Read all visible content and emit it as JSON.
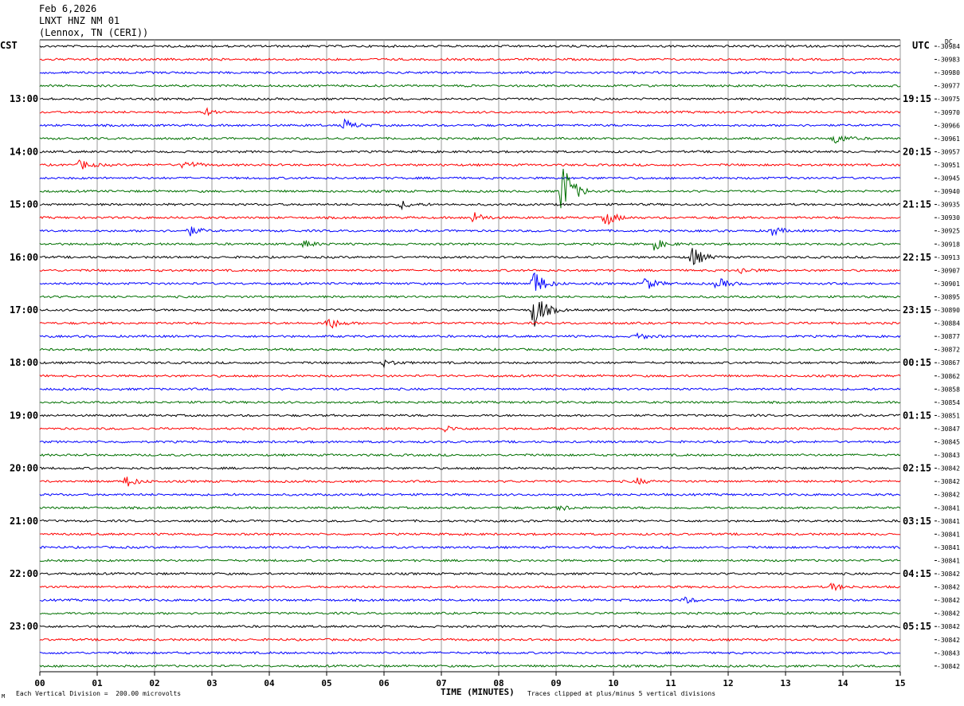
{
  "header": {
    "date": "Feb 6,2026",
    "station": "LNXT HNZ NM 01",
    "location": "(Lennox, TN (CERI))"
  },
  "left_axis_title": "CST",
  "right_axis_title": "UTC",
  "dc_title": "DC",
  "footer": {
    "left_note": "Each Vertical Division =  200.00 microvolts",
    "axis_title": "TIME (MINUTES)",
    "right_note": "Traces clipped at plus/minus 5 vertical divisions",
    "corner_mark": "M"
  },
  "chart_data": {
    "type": "line",
    "title": "",
    "xlabel": "TIME (MINUTES)",
    "xlim": [
      0,
      15
    ],
    "x_ticks": [
      "00",
      "01",
      "02",
      "03",
      "04",
      "05",
      "06",
      "07",
      "08",
      "09",
      "10",
      "11",
      "12",
      "13",
      "14",
      "15"
    ],
    "trace_count": 48,
    "minutes_per_trace": 15,
    "trace_colors": [
      "#000000",
      "#ff0000",
      "#0000ff",
      "#007000"
    ],
    "left_time_labels": [
      {
        "trace": 4,
        "label": "13:00"
      },
      {
        "trace": 8,
        "label": "14:00"
      },
      {
        "trace": 12,
        "label": "15:00"
      },
      {
        "trace": 16,
        "label": "16:00"
      },
      {
        "trace": 20,
        "label": "17:00"
      },
      {
        "trace": 24,
        "label": "18:00"
      },
      {
        "trace": 28,
        "label": "19:00"
      },
      {
        "trace": 32,
        "label": "20:00"
      },
      {
        "trace": 36,
        "label": "21:00"
      },
      {
        "trace": 40,
        "label": "22:00"
      },
      {
        "trace": 44,
        "label": "23:00"
      }
    ],
    "right_time_labels": [
      {
        "trace": 4,
        "label": "19:15"
      },
      {
        "trace": 8,
        "label": "20:15"
      },
      {
        "trace": 12,
        "label": "21:15"
      },
      {
        "trace": 16,
        "label": "22:15"
      },
      {
        "trace": 20,
        "label": "23:15"
      },
      {
        "trace": 24,
        "label": "00:15"
      },
      {
        "trace": 28,
        "label": "01:15"
      },
      {
        "trace": 32,
        "label": "02:15"
      },
      {
        "trace": 36,
        "label": "03:15"
      },
      {
        "trace": 40,
        "label": "04:15"
      },
      {
        "trace": 44,
        "label": "05:15"
      }
    ],
    "dc_offsets": [
      "-30984",
      "-30983",
      "-30980",
      "-30977",
      "-30975",
      "-30970",
      "-30966",
      "-30961",
      "-30957",
      "-30951",
      "-30945",
      "-30940",
      "-30935",
      "-30930",
      "-30925",
      "-30918",
      "-30913",
      "-30907",
      "-30901",
      "-30895",
      "-30890",
      "-30884",
      "-30877",
      "-30872",
      "-30867",
      "-30862",
      "-30858",
      "-30854",
      "-30851",
      "-30847",
      "-30845",
      "-30843",
      "-30842",
      "-30842",
      "-30842",
      "-30841",
      "-30841",
      "-30841",
      "-30841",
      "-30841",
      "-30842",
      "-30842",
      "-30842",
      "-30842",
      "-30842",
      "-30842",
      "-30843",
      "-30842"
    ],
    "events": [
      {
        "trace": 5,
        "minute": 2.9,
        "amp": 0.25
      },
      {
        "trace": 6,
        "minute": 5.3,
        "amp": 0.45
      },
      {
        "trace": 7,
        "minute": 13.85,
        "amp": 0.5
      },
      {
        "trace": 9,
        "minute": 0.7,
        "amp": 0.4
      },
      {
        "trace": 9,
        "minute": 2.5,
        "amp": 0.45
      },
      {
        "trace": 11,
        "minute": 9.1,
        "amp": 2.7
      },
      {
        "trace": 12,
        "minute": 6.3,
        "amp": 0.3
      },
      {
        "trace": 13,
        "minute": 7.55,
        "amp": 0.45
      },
      {
        "trace": 13,
        "minute": 9.85,
        "amp": 0.7
      },
      {
        "trace": 14,
        "minute": 2.6,
        "amp": 0.4
      },
      {
        "trace": 14,
        "minute": 12.75,
        "amp": 0.4
      },
      {
        "trace": 15,
        "minute": 4.6,
        "amp": 0.3
      },
      {
        "trace": 15,
        "minute": 10.7,
        "amp": 0.45
      },
      {
        "trace": 16,
        "minute": 11.35,
        "amp": 1.0
      },
      {
        "trace": 17,
        "minute": 12.2,
        "amp": 0.25
      },
      {
        "trace": 18,
        "minute": 8.6,
        "amp": 1.2
      },
      {
        "trace": 18,
        "minute": 10.55,
        "amp": 0.55
      },
      {
        "trace": 18,
        "minute": 11.8,
        "amp": 0.5
      },
      {
        "trace": 20,
        "minute": 8.6,
        "amp": 1.8
      },
      {
        "trace": 21,
        "minute": 5.0,
        "amp": 0.6
      },
      {
        "trace": 22,
        "minute": 10.4,
        "amp": 0.3
      },
      {
        "trace": 24,
        "minute": 6.0,
        "amp": 0.25
      },
      {
        "trace": 29,
        "minute": 7.05,
        "amp": 0.25
      },
      {
        "trace": 33,
        "minute": 1.5,
        "amp": 0.45
      },
      {
        "trace": 33,
        "minute": 10.4,
        "amp": 0.25
      },
      {
        "trace": 35,
        "minute": 9.05,
        "amp": 0.25
      },
      {
        "trace": 41,
        "minute": 13.8,
        "amp": 0.3
      },
      {
        "trace": 42,
        "minute": 11.2,
        "amp": 0.3
      }
    ]
  }
}
